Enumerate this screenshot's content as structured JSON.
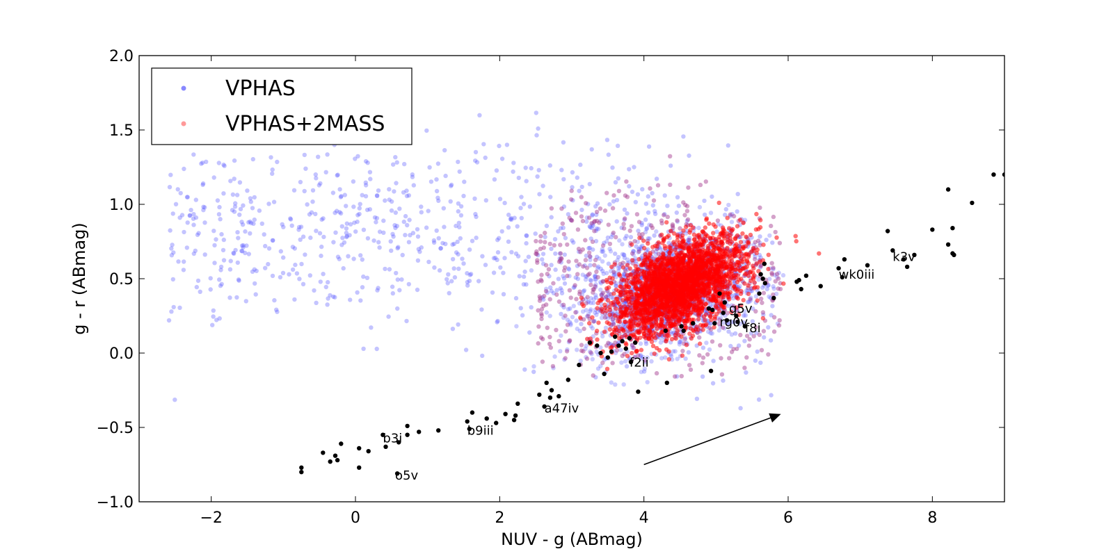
{
  "chart_data": {
    "type": "scatter",
    "title": "",
    "xlabel": "NUV - g (ABmag)",
    "ylabel": "g - r (ABmag)",
    "xlim": [
      -3,
      9
    ],
    "ylim": [
      -1.0,
      2.0
    ],
    "xticks": [
      -2,
      0,
      2,
      4,
      6,
      8
    ],
    "xtick_labels": [
      "−2",
      "0",
      "2",
      "4",
      "6",
      "8"
    ],
    "yticks": [
      -1.0,
      -0.5,
      0.0,
      0.5,
      1.0,
      1.5,
      2.0
    ],
    "ytick_labels": [
      "−1.0",
      "−0.5",
      "0.0",
      "0.5",
      "1.0",
      "1.5",
      "2.0"
    ],
    "grid": false,
    "legend_position": "top-left",
    "series": [
      {
        "name": "VPHAS",
        "color": "#5555ff",
        "distribution": "broad cloud from NUV-g −2.6 to 6, g-r −0.5 to 2.0, densest near (4.3, 0.4)"
      },
      {
        "name": "VPHAS+2MASS",
        "color": "#ff0000",
        "distribution": "concentrated cluster centred near NUV-g 4.5, g-r 0.45"
      }
    ],
    "reference_track": {
      "color": "#000000",
      "points": [
        [
          -0.75,
          -0.77
        ],
        [
          -0.75,
          -0.8
        ],
        [
          -0.45,
          -0.67
        ],
        [
          -0.35,
          -0.73
        ],
        [
          -0.28,
          -0.69
        ],
        [
          -0.25,
          -0.72
        ],
        [
          -0.2,
          -0.61
        ],
        [
          0.05,
          -0.64
        ],
        [
          0.05,
          -0.77
        ],
        [
          0.18,
          -0.66
        ],
        [
          0.38,
          -0.55
        ],
        [
          0.42,
          -0.63
        ],
        [
          0.58,
          -0.81
        ],
        [
          0.6,
          -0.6
        ],
        [
          0.72,
          -0.49
        ],
        [
          0.72,
          -0.55
        ],
        [
          0.88,
          -0.53
        ],
        [
          1.15,
          -0.52
        ],
        [
          1.55,
          -0.46
        ],
        [
          1.58,
          -0.51
        ],
        [
          1.62,
          -0.4
        ],
        [
          1.82,
          -0.44
        ],
        [
          1.95,
          -0.47
        ],
        [
          2.08,
          -0.41
        ],
        [
          2.2,
          -0.45
        ],
        [
          2.22,
          -0.42
        ],
        [
          2.25,
          -0.34
        ],
        [
          2.55,
          -0.28
        ],
        [
          2.62,
          -0.36
        ],
        [
          2.65,
          -0.2
        ],
        [
          2.7,
          -0.3
        ],
        [
          2.72,
          -0.25
        ],
        [
          2.82,
          -0.29
        ],
        [
          2.95,
          -0.18
        ],
        [
          3.1,
          -0.08
        ],
        [
          3.25,
          0.07
        ],
        [
          3.35,
          0.05
        ],
        [
          3.4,
          0.0
        ],
        [
          3.45,
          -0.14
        ],
        [
          3.5,
          -0.03
        ],
        [
          3.55,
          0.01
        ],
        [
          3.6,
          0.11
        ],
        [
          3.65,
          0.05
        ],
        [
          3.7,
          0.08
        ],
        [
          3.75,
          0.03
        ],
        [
          3.8,
          0.1
        ],
        [
          3.88,
          0.07
        ],
        [
          3.82,
          -0.06
        ],
        [
          3.92,
          -0.26
        ],
        [
          4.3,
          0.15
        ],
        [
          4.32,
          -0.2
        ],
        [
          4.52,
          0.18
        ],
        [
          4.55,
          0.15
        ],
        [
          4.68,
          0.2
        ],
        [
          4.9,
          0.3
        ],
        [
          4.93,
          -0.12
        ],
        [
          4.95,
          0.29
        ],
        [
          4.98,
          0.2
        ],
        [
          5.05,
          0.4
        ],
        [
          5.1,
          0.27
        ],
        [
          5.12,
          0.34
        ],
        [
          5.15,
          0.22
        ],
        [
          5.28,
          0.25
        ],
        [
          5.3,
          0.21
        ],
        [
          5.4,
          0.18
        ],
        [
          5.6,
          0.4
        ],
        [
          5.62,
          0.53
        ],
        [
          5.65,
          0.5
        ],
        [
          5.67,
          0.6
        ],
        [
          5.68,
          0.47
        ],
        [
          5.8,
          0.37
        ],
        [
          6.12,
          0.48
        ],
        [
          6.15,
          0.49
        ],
        [
          6.18,
          0.43
        ],
        [
          6.25,
          0.52
        ],
        [
          6.45,
          0.45
        ],
        [
          6.7,
          0.57
        ],
        [
          6.75,
          0.51
        ],
        [
          6.78,
          0.63
        ],
        [
          7.1,
          0.59
        ],
        [
          7.38,
          0.82
        ],
        [
          7.45,
          0.69
        ],
        [
          7.6,
          0.63
        ],
        [
          7.65,
          0.58
        ],
        [
          7.75,
          0.66
        ],
        [
          8.0,
          0.83
        ],
        [
          8.22,
          0.73
        ],
        [
          8.22,
          1.1
        ],
        [
          8.28,
          0.67
        ],
        [
          8.3,
          0.66
        ],
        [
          8.28,
          0.84
        ],
        [
          8.55,
          1.01
        ],
        [
          8.85,
          1.2
        ],
        [
          9.0,
          1.2
        ]
      ],
      "labels": [
        {
          "text": "o5v",
          "x": 0.55,
          "y": -0.85
        },
        {
          "text": "b3i",
          "x": 0.38,
          "y": -0.6
        },
        {
          "text": "b9iii",
          "x": 1.55,
          "y": -0.55
        },
        {
          "text": "a47iv",
          "x": 2.62,
          "y": -0.4
        },
        {
          "text": "f2ii",
          "x": 3.8,
          "y": -0.09
        },
        {
          "text": "f8i",
          "x": 5.4,
          "y": 0.14
        },
        {
          "text": "rg0v",
          "x": 5.05,
          "y": 0.18
        },
        {
          "text": "g5v",
          "x": 5.18,
          "y": 0.27
        },
        {
          "text": "wk0iii",
          "x": 6.7,
          "y": 0.5
        },
        {
          "text": "k3v",
          "x": 7.45,
          "y": 0.62
        }
      ]
    },
    "annotations": [
      {
        "type": "arrow",
        "from": [
          4.0,
          -0.75
        ],
        "to": [
          5.9,
          -0.41
        ]
      }
    ]
  }
}
